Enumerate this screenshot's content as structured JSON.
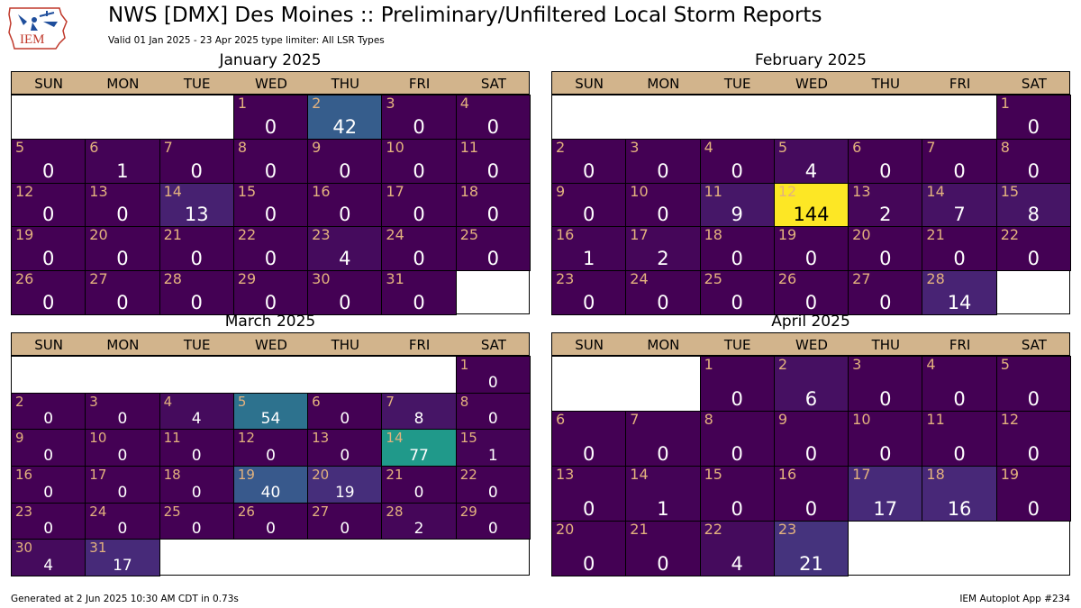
{
  "header": {
    "title": "NWS [DMX] Des Moines :: Preliminary/Unfiltered Local Storm Reports",
    "subtitle": "Valid 01 Jan 2025 - 23 Apr 2025 type limiter: All LSR Types",
    "logo_text": "IEM"
  },
  "footer": {
    "left": "Generated at 2 Jun 2025 10:30 AM CDT in 0.73s",
    "right": "IEM Autoplot App #234"
  },
  "weekdays": [
    "SUN",
    "MON",
    "TUE",
    "WED",
    "THU",
    "FRI",
    "SAT"
  ],
  "colors": {
    "weekday_header": "#d2b48c",
    "day_number": "#e3b27e",
    "colormap": "viridis",
    "max_count": 144
  },
  "chart_data": {
    "type": "heatmap",
    "months": [
      {
        "title": "January 2025",
        "start_weekday": 3,
        "counts": [
          0,
          42,
          0,
          0,
          0,
          1,
          0,
          0,
          0,
          0,
          0,
          0,
          0,
          13,
          0,
          0,
          0,
          0,
          0,
          0,
          0,
          0,
          4,
          0,
          0,
          0,
          0,
          0,
          0,
          0,
          0
        ]
      },
      {
        "title": "February 2025",
        "start_weekday": 6,
        "counts": [
          0,
          0,
          0,
          0,
          4,
          0,
          0,
          0,
          0,
          0,
          9,
          144,
          2,
          7,
          8,
          1,
          2,
          0,
          0,
          0,
          0,
          0,
          0,
          0,
          0,
          0,
          0,
          14
        ]
      },
      {
        "title": "March 2025",
        "start_weekday": 6,
        "counts": [
          0,
          0,
          0,
          4,
          54,
          0,
          8,
          0,
          0,
          0,
          0,
          0,
          0,
          77,
          1,
          0,
          0,
          0,
          40,
          19,
          0,
          0,
          0,
          0,
          0,
          0,
          0,
          2,
          0,
          4,
          17
        ]
      },
      {
        "title": "April 2025",
        "start_weekday": 2,
        "counts": [
          0,
          6,
          0,
          0,
          0,
          0,
          0,
          0,
          0,
          0,
          0,
          0,
          0,
          1,
          0,
          0,
          17,
          16,
          0,
          0,
          0,
          4,
          21
        ]
      }
    ]
  }
}
